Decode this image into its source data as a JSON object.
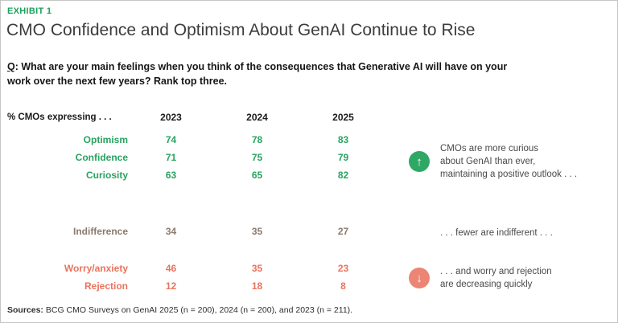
{
  "exhibit_label": "EXHIBIT 1",
  "title": "CMO Confidence and Optimism About GenAI Continue to Rise",
  "question": {
    "q": "Q",
    "text": ": What are your main feelings when you think of the consequences that Generative AI will have on your work over the next few years? Rank top three."
  },
  "table": {
    "header": "% CMOs expressing . . .",
    "years": [
      "2023",
      "2024",
      "2025"
    ],
    "rows": [
      {
        "label": "Optimism",
        "values": [
          "74",
          "78",
          "83"
        ]
      },
      {
        "label": "Confidence",
        "values": [
          "71",
          "75",
          "79"
        ]
      },
      {
        "label": "Curiosity",
        "values": [
          "63",
          "65",
          "82"
        ]
      },
      {
        "label": "Indifference",
        "values": [
          "34",
          "35",
          "27"
        ]
      },
      {
        "label": "Worry/anxiety",
        "values": [
          "46",
          "35",
          "23"
        ]
      },
      {
        "label": "Rejection",
        "values": [
          "12",
          "18",
          "8"
        ]
      }
    ]
  },
  "annotations": [
    {
      "icon": "arrow-up-circle",
      "lines": [
        "CMOs are more curious",
        "about GenAI than ever,",
        "maintaining a positive outlook . . ."
      ]
    },
    {
      "icon": "none",
      "lines": [
        ". . . fewer are indifferent . . ."
      ]
    },
    {
      "icon": "arrow-down-circle",
      "lines": [
        ". . . and worry and rejection",
        "are decreasing quickly"
      ]
    }
  ],
  "icons": {
    "up": "↑",
    "down": "↓"
  },
  "sources": {
    "prefix": "Sources:",
    "text": " BCG CMO Surveys on GenAI 2025 (n = 200), 2024 (n = 200), and 2023 (n = 211)."
  },
  "colors": {
    "positive_green": "#27a35f",
    "neutral_taupe": "#8a7a6c",
    "negative_red": "#e8735c",
    "up_circle_green": "#2fa866",
    "down_circle_salmon": "#ec8574",
    "exhibit_green": "#1ba05c",
    "title_gray": "#3c3c3c"
  },
  "chart_data": {
    "type": "table",
    "title": "CMO Confidence and Optimism About GenAI Continue to Rise",
    "unit": "% CMOs expressing",
    "columns": [
      "2023",
      "2024",
      "2025"
    ],
    "rows": [
      {
        "label": "Optimism",
        "tone": "positive",
        "values": [
          74,
          78,
          83
        ]
      },
      {
        "label": "Confidence",
        "tone": "positive",
        "values": [
          71,
          75,
          79
        ]
      },
      {
        "label": "Curiosity",
        "tone": "positive",
        "values": [
          63,
          65,
          82
        ]
      },
      {
        "label": "Indifference",
        "tone": "neutral",
        "values": [
          34,
          35,
          27
        ]
      },
      {
        "label": "Worry/anxiety",
        "tone": "negative",
        "values": [
          46,
          35,
          23
        ]
      },
      {
        "label": "Rejection",
        "tone": "negative",
        "values": [
          12,
          18,
          8
        ]
      }
    ]
  }
}
